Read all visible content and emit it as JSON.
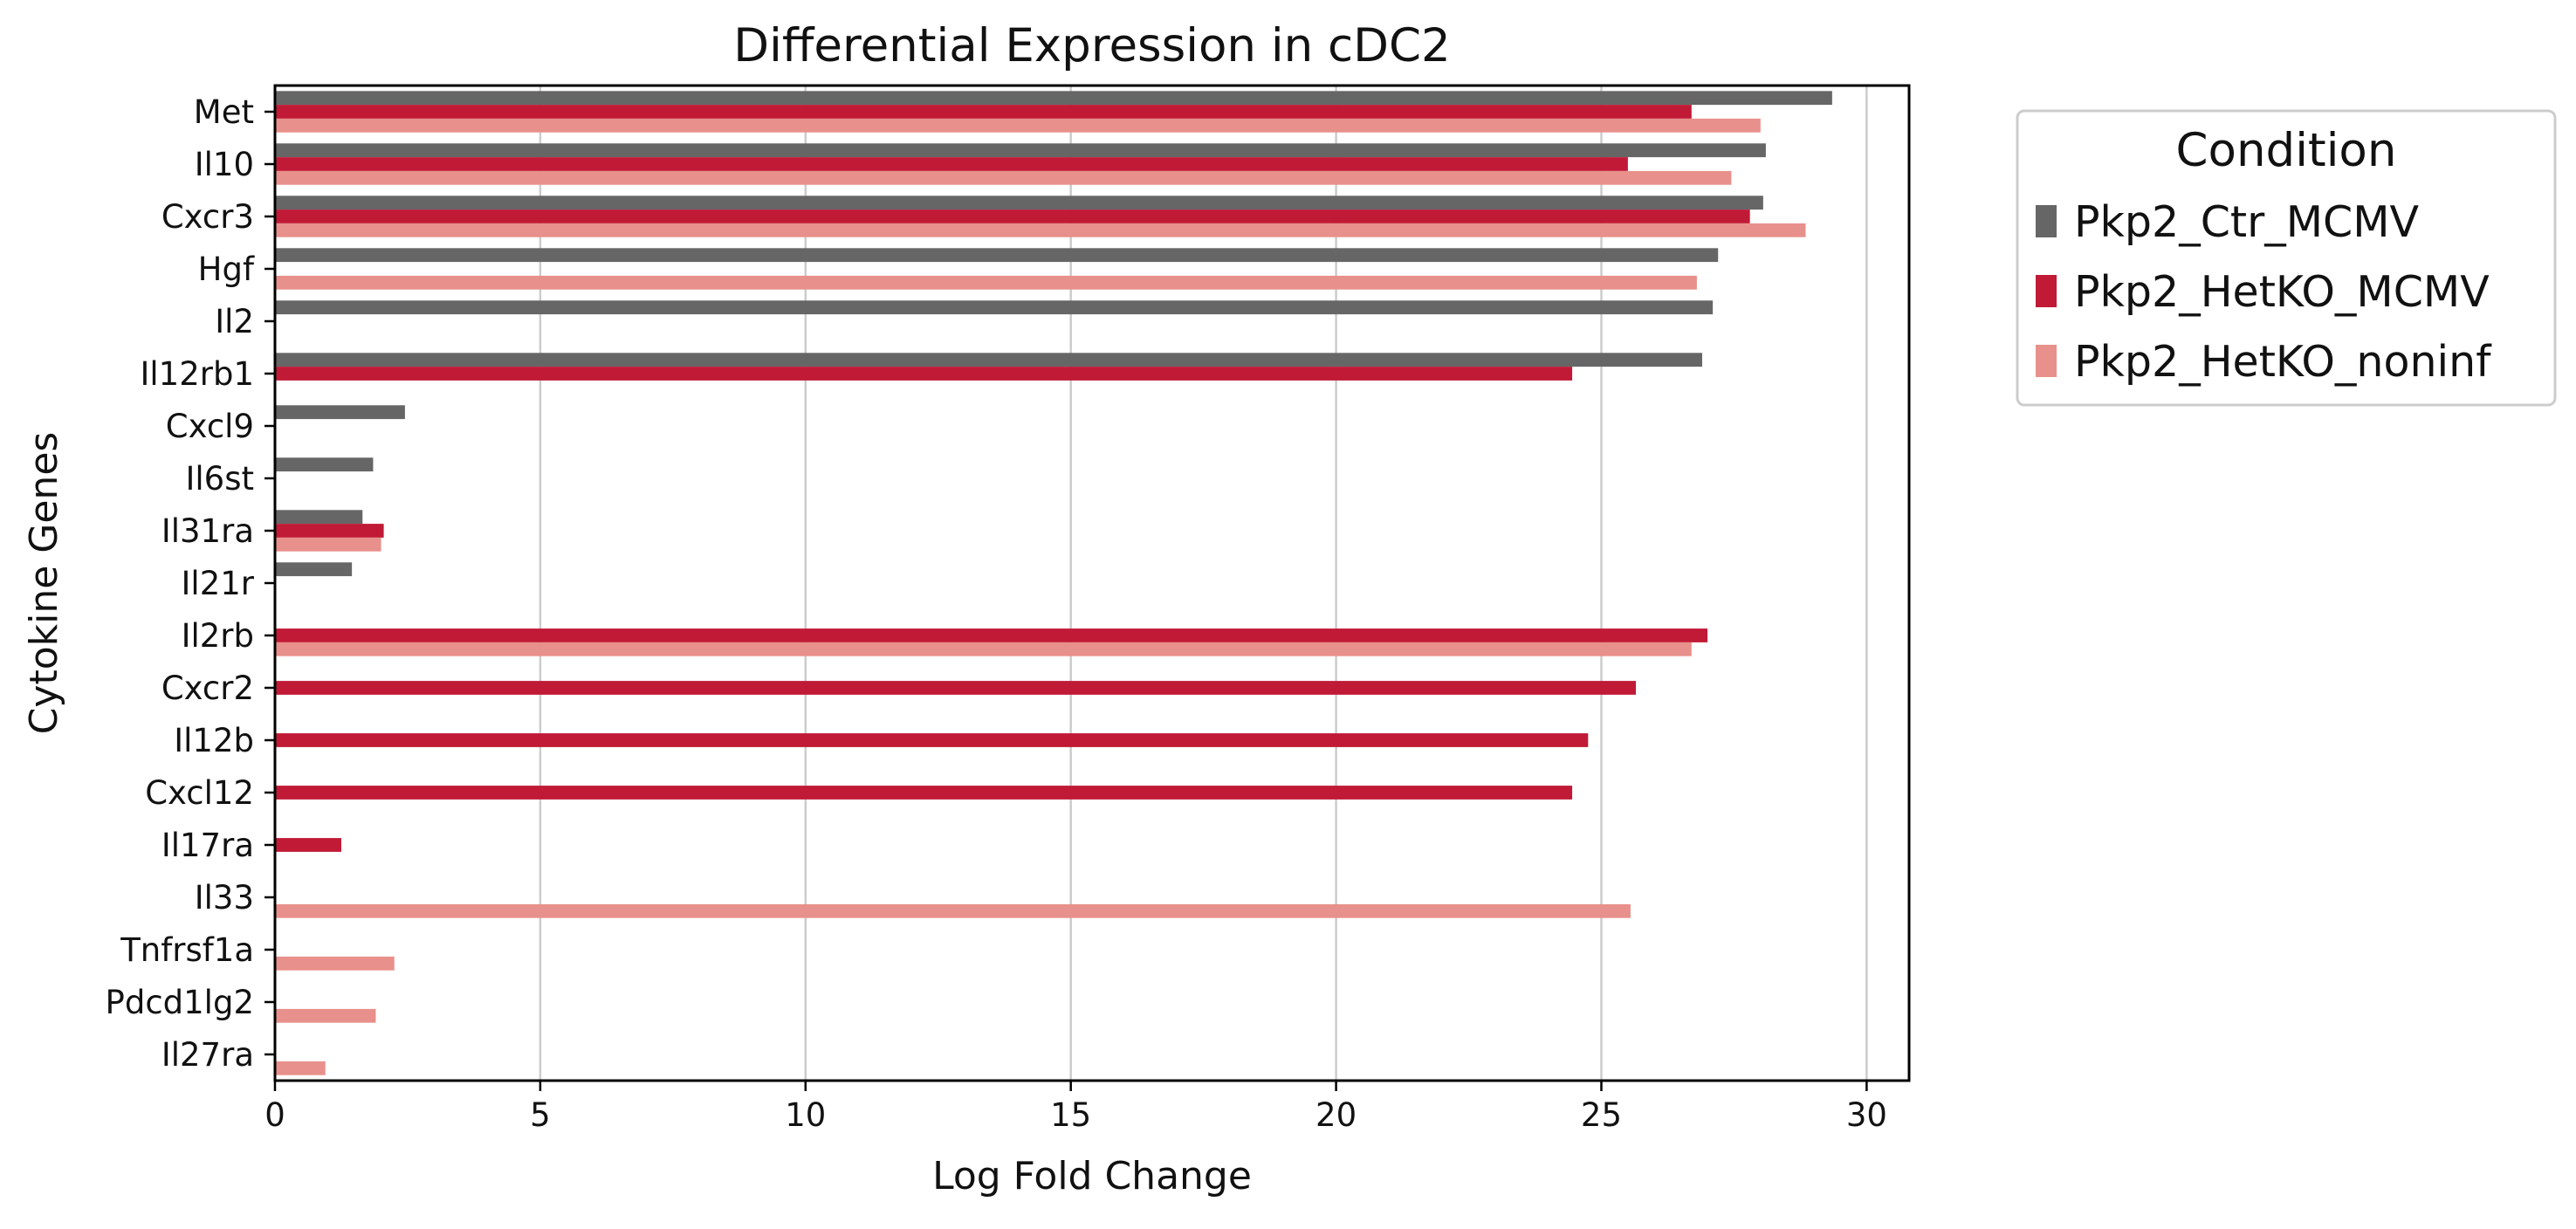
{
  "chart_data": {
    "type": "bar",
    "orientation": "horizontal",
    "title": "Differential Expression in cDC2",
    "xlabel": "Log Fold Change",
    "ylabel": "Cytokine Genes",
    "xlim": [
      0,
      30.8
    ],
    "xticks": [
      0,
      5,
      10,
      15,
      20,
      25,
      30
    ],
    "grid": "x",
    "legend": {
      "title": "Condition",
      "position": "outside-top-right"
    },
    "categories": [
      "Met",
      "Il10",
      "Cxcr3",
      "Hgf",
      "Il2",
      "Il12rb1",
      "Cxcl9",
      "Il6st",
      "Il31ra",
      "Il21r",
      "Il2rb",
      "Cxcr2",
      "Il12b",
      "Cxcl12",
      "Il17ra",
      "Il33",
      "Tnfrsf1a",
      "Pdcd1lg2",
      "Il27ra"
    ],
    "series": [
      {
        "name": "Pkp2_Ctr_MCMV",
        "color": "#666666",
        "values": [
          29.35,
          28.1,
          28.05,
          27.2,
          27.1,
          26.9,
          2.45,
          1.85,
          1.65,
          1.45,
          null,
          null,
          null,
          null,
          null,
          null,
          null,
          null,
          null
        ]
      },
      {
        "name": "Pkp2_HetKO_MCMV",
        "color": "#c01a36",
        "values": [
          26.7,
          25.5,
          27.8,
          null,
          null,
          24.45,
          null,
          null,
          2.05,
          null,
          27.0,
          25.65,
          24.75,
          24.45,
          1.25,
          null,
          null,
          null,
          null
        ]
      },
      {
        "name": "Pkp2_HetKO_noninf",
        "color": "#e8908b",
        "values": [
          28.0,
          27.45,
          28.85,
          26.8,
          null,
          null,
          null,
          null,
          2.0,
          null,
          26.7,
          null,
          null,
          null,
          null,
          25.55,
          2.25,
          1.9,
          0.95
        ]
      }
    ]
  }
}
